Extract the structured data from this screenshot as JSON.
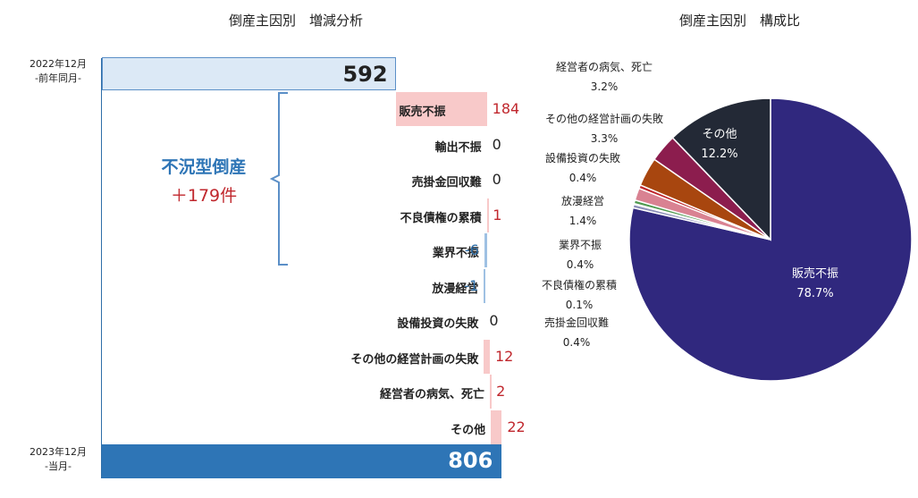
{
  "left_title": "倒産主因別　増減分析",
  "right_title": "倒産主因別　構成比",
  "prev": {
    "period": "2022年12月",
    "sub": "-前年同月-",
    "value": 592
  },
  "curr": {
    "period": "2023年12月",
    "sub": "-当月-",
    "value": 806
  },
  "bracket": {
    "label": "不況型倒産",
    "value": "＋179件"
  },
  "colors": {
    "prev_box": "#dce9f6",
    "curr_box": "#2e75b6",
    "positive": "#f8c9c9",
    "negative": "#9fc1e3",
    "value_pos": "#c0272d",
    "value_neg": "#2e6ea8",
    "bracket": "#2e6ea8"
  },
  "chart_data": [
    {
      "type": "bar",
      "title": "倒産主因別　増減分析",
      "base": 592,
      "total": 806,
      "categories": [
        "販売不振",
        "輸出不振",
        "売掛金回収難",
        "不良債権の累積",
        "業界不振",
        "放漫経営",
        "設備投資の失敗",
        "その他の経営計画の失敗",
        "経営者の病気、死亡",
        "その他"
      ],
      "values": [
        184,
        0,
        0,
        1,
        -6,
        -1,
        0,
        12,
        2,
        22
      ],
      "labels": [
        "184",
        "0",
        "0",
        "1",
        "-6",
        "-1",
        "0",
        "12",
        "2",
        "22"
      ]
    },
    {
      "type": "pie",
      "title": "倒産主因別　構成比",
      "slices": [
        {
          "name": "販売不振",
          "value": 78.7,
          "label": "78.7%",
          "color": "#30287e",
          "inside": true
        },
        {
          "name": "売掛金回収難",
          "value": 0.4,
          "label": "0.4%",
          "color": "#8c8fb8",
          "inside": false
        },
        {
          "name": "不良債権の累積",
          "value": 0.1,
          "label": "0.1%",
          "color": "#6a5fa8",
          "inside": false
        },
        {
          "name": "業界不振",
          "value": 0.4,
          "label": "0.4%",
          "color": "#4f9a4f",
          "inside": false
        },
        {
          "name": "放漫経営",
          "value": 1.4,
          "label": "1.4%",
          "color": "#d98292",
          "inside": false
        },
        {
          "name": "設備投資の失敗",
          "value": 0.4,
          "label": "0.4%",
          "color": "#c0272d",
          "inside": false
        },
        {
          "name": "その他の経営計画の失敗",
          "value": 3.3,
          "label": "3.3%",
          "color": "#a8460f",
          "inside": false
        },
        {
          "name": "経営者の病気、死亡",
          "value": 3.2,
          "label": "3.2%",
          "color": "#8c1d4e",
          "inside": false
        },
        {
          "name": "その他",
          "value": 12.2,
          "label": "12.2%",
          "color": "#232936",
          "inside": true
        }
      ]
    }
  ]
}
